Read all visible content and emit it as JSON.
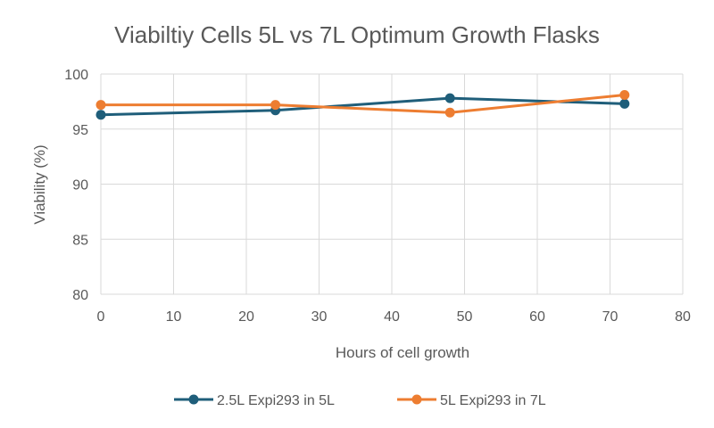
{
  "chart_data": {
    "type": "line",
    "title": "Viabiltiy Cells 5L vs 7L Optimum Growth Flasks",
    "xlabel": "Hours of cell growth",
    "ylabel": "Viability (%)",
    "xlim": [
      0,
      80
    ],
    "ylim": [
      80,
      100
    ],
    "xticks": [
      0,
      10,
      20,
      30,
      40,
      50,
      60,
      70,
      80
    ],
    "yticks": [
      80,
      85,
      90,
      95,
      100
    ],
    "grid": true,
    "legend": "bottom",
    "series": [
      {
        "name": "2.5L Expi293 in 5L",
        "color": "#1f5e7a",
        "x": [
          0,
          24,
          48,
          72
        ],
        "y": [
          96.3,
          96.7,
          97.8,
          97.3
        ]
      },
      {
        "name": "5L Expi293 in 7L",
        "color": "#ed7d31",
        "x": [
          0,
          24,
          48,
          72
        ],
        "y": [
          97.2,
          97.2,
          96.5,
          98.1
        ]
      }
    ]
  }
}
